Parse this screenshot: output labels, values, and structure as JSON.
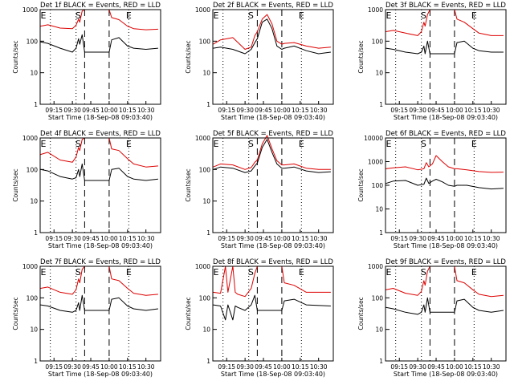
{
  "common": {
    "ylabel": "Counts/sec",
    "xlabel": "Start Time (18-Sep-08 09:03:40)",
    "x_ticks": [
      "09:15",
      "09:30",
      "09:45",
      "10:00",
      "10:15",
      "10:30"
    ],
    "x_tick_minutes": [
      15,
      30,
      45,
      60,
      75,
      90
    ],
    "x_range_minutes": [
      3.7,
      102
    ],
    "y_ticks": [
      "1",
      "10",
      "100",
      "1000"
    ],
    "y_tick_values": [
      1,
      10,
      100,
      1000
    ],
    "y_range": [
      1,
      1000
    ],
    "y_scale": "log",
    "markers": {
      "E": "E",
      "S": "S"
    },
    "series": [
      {
        "name": "Events",
        "color": "#000000"
      },
      {
        "name": "LLD",
        "color": "#dd0000"
      }
    ],
    "dotted_lines_minutes": [
      12,
      33,
      76
    ],
    "dashed_lines_minutes": [
      40,
      60
    ]
  },
  "chart_data": [
    {
      "type": "line",
      "title": "Det 1f BLACK = Events, RED = LLD",
      "y_ticks": [
        "1",
        "10",
        "100",
        "1000"
      ],
      "x_minutes": [
        4,
        10,
        20,
        30,
        33,
        35,
        36,
        38,
        40,
        45,
        60,
        62,
        68,
        75,
        80,
        90,
        100
      ],
      "series": [
        {
          "name": "Events",
          "values": [
            95,
            85,
            60,
            45,
            60,
            120,
            80,
            160,
            45,
            45,
            45,
            110,
            130,
            70,
            60,
            55,
            60
          ]
        },
        {
          "name": "LLD",
          "values": [
            300,
            330,
            260,
            250,
            320,
            500,
            400,
            900,
            1000,
            1000,
            1000,
            560,
            480,
            300,
            250,
            230,
            240
          ]
        }
      ]
    },
    {
      "type": "line",
      "title": "Det 2f BLACK = Events, RED = LLD",
      "y_ticks": [
        "1",
        "10",
        "100",
        "1000"
      ],
      "x_minutes": [
        4,
        10,
        20,
        30,
        35,
        38,
        40,
        44,
        48,
        52,
        56,
        60,
        62,
        70,
        80,
        90,
        100
      ],
      "series": [
        {
          "name": "Events",
          "values": [
            60,
            65,
            55,
            40,
            55,
            90,
            120,
            400,
            500,
            250,
            70,
            55,
            60,
            70,
            50,
            40,
            45
          ]
        },
        {
          "name": "LLD",
          "values": [
            80,
            110,
            130,
            55,
            65,
            150,
            200,
            500,
            700,
            350,
            100,
            80,
            85,
            90,
            70,
            60,
            65
          ]
        }
      ]
    },
    {
      "type": "line",
      "title": "Det 3f BLACK = Events, RED = LLD",
      "y_ticks": [
        "1",
        "10",
        "100",
        "1000"
      ],
      "x_minutes": [
        4,
        10,
        20,
        30,
        33,
        35,
        36,
        38,
        40,
        45,
        60,
        62,
        68,
        75,
        80,
        90,
        100
      ],
      "series": [
        {
          "name": "Events",
          "values": [
            60,
            55,
            45,
            40,
            45,
            70,
            40,
            100,
            40,
            40,
            40,
            90,
            100,
            60,
            50,
            45,
            45
          ]
        },
        {
          "name": "LLD",
          "values": [
            200,
            220,
            180,
            150,
            200,
            400,
            300,
            700,
            1000,
            1000,
            1000,
            500,
            400,
            250,
            180,
            150,
            150
          ]
        }
      ]
    },
    {
      "type": "line",
      "title": "Det 4f BLACK = Events, RED = LLD",
      "y_ticks": [
        "1",
        "10",
        "100",
        "1000"
      ],
      "x_minutes": [
        4,
        10,
        20,
        30,
        33,
        35,
        36,
        38,
        40,
        45,
        60,
        62,
        68,
        75,
        80,
        90,
        100
      ],
      "series": [
        {
          "name": "Events",
          "values": [
            100,
            90,
            60,
            50,
            55,
            100,
            60,
            150,
            45,
            45,
            45,
            100,
            110,
            60,
            50,
            45,
            50
          ]
        },
        {
          "name": "LLD",
          "values": [
            300,
            350,
            200,
            170,
            250,
            500,
            400,
            900,
            1000,
            1000,
            1000,
            450,
            400,
            220,
            150,
            120,
            130
          ]
        }
      ]
    },
    {
      "type": "line",
      "title": "Det 5f BLACK = Events, RED = LLD",
      "y_ticks": [
        "1",
        "10",
        "100",
        "1000"
      ],
      "x_minutes": [
        4,
        10,
        20,
        30,
        35,
        38,
        40,
        44,
        48,
        52,
        56,
        60,
        62,
        70,
        80,
        90,
        100
      ],
      "series": [
        {
          "name": "Events",
          "values": [
            100,
            120,
            110,
            80,
            90,
            130,
            160,
            500,
            900,
            350,
            150,
            110,
            110,
            120,
            90,
            80,
            85
          ]
        },
        {
          "name": "LLD",
          "values": [
            120,
            150,
            140,
            100,
            115,
            170,
            200,
            650,
            1200,
            450,
            190,
            140,
            140,
            150,
            110,
            100,
            100
          ]
        }
      ]
    },
    {
      "type": "line",
      "title": "Det 6f BLACK = Events, RED = LLD",
      "y_ticks": [
        "1",
        "10",
        "100",
        "1000",
        "10000"
      ],
      "x_minutes": [
        4,
        10,
        20,
        30,
        35,
        37,
        39,
        42,
        45,
        50,
        55,
        60,
        62,
        70,
        80,
        90,
        100
      ],
      "series": [
        {
          "name": "Events",
          "values": [
            120,
            150,
            160,
            100,
            110,
            200,
            120,
            150,
            180,
            140,
            100,
            90,
            100,
            100,
            80,
            70,
            75
          ]
        },
        {
          "name": "LLD",
          "values": [
            500,
            550,
            600,
            450,
            500,
            900,
            600,
            800,
            1800,
            1000,
            600,
            500,
            500,
            450,
            380,
            350,
            360
          ]
        }
      ]
    },
    {
      "type": "line",
      "title": "Det 7f BLACK = Events, RED = LLD",
      "y_ticks": [
        "1",
        "10",
        "100",
        "1000"
      ],
      "x_minutes": [
        4,
        10,
        20,
        30,
        33,
        35,
        36,
        38,
        40,
        45,
        60,
        62,
        68,
        75,
        80,
        90,
        100
      ],
      "series": [
        {
          "name": "Events",
          "values": [
            60,
            55,
            40,
            35,
            40,
            70,
            40,
            120,
            40,
            40,
            40,
            90,
            100,
            55,
            45,
            40,
            45
          ]
        },
        {
          "name": "LLD",
          "values": [
            200,
            220,
            150,
            130,
            180,
            400,
            300,
            800,
            1000,
            1000,
            1000,
            400,
            350,
            200,
            140,
            120,
            130
          ]
        }
      ]
    },
    {
      "type": "line",
      "title": "Det 8f BLACK = Events, RED = LLD",
      "y_ticks": [
        "1",
        "10",
        "100",
        "1000"
      ],
      "x_minutes": [
        4,
        10,
        14,
        16,
        20,
        22,
        24,
        30,
        35,
        38,
        40,
        45,
        60,
        62,
        70,
        80,
        100
      ],
      "series": [
        {
          "name": "Events",
          "values": [
            60,
            55,
            20,
            60,
            20,
            55,
            50,
            40,
            60,
            120,
            40,
            40,
            40,
            80,
            90,
            60,
            55
          ]
        },
        {
          "name": "LLD",
          "values": [
            150,
            140,
            1000,
            150,
            1000,
            150,
            130,
            110,
            200,
            600,
            1000,
            1000,
            1000,
            300,
            250,
            150,
            150
          ]
        }
      ]
    },
    {
      "type": "line",
      "title": "Det 9f BLACK = Events, RED = LLD",
      "y_ticks": [
        "1",
        "10",
        "100",
        "1000"
      ],
      "x_minutes": [
        4,
        10,
        20,
        30,
        33,
        35,
        36,
        38,
        40,
        45,
        60,
        62,
        68,
        75,
        80,
        90,
        100
      ],
      "series": [
        {
          "name": "Events",
          "values": [
            50,
            45,
            35,
            30,
            35,
            60,
            35,
            100,
            35,
            35,
            35,
            80,
            90,
            50,
            40,
            35,
            40
          ]
        },
        {
          "name": "LLD",
          "values": [
            180,
            200,
            140,
            120,
            160,
            350,
            250,
            700,
            1000,
            1000,
            1000,
            350,
            300,
            180,
            130,
            110,
            120
          ]
        }
      ]
    }
  ]
}
